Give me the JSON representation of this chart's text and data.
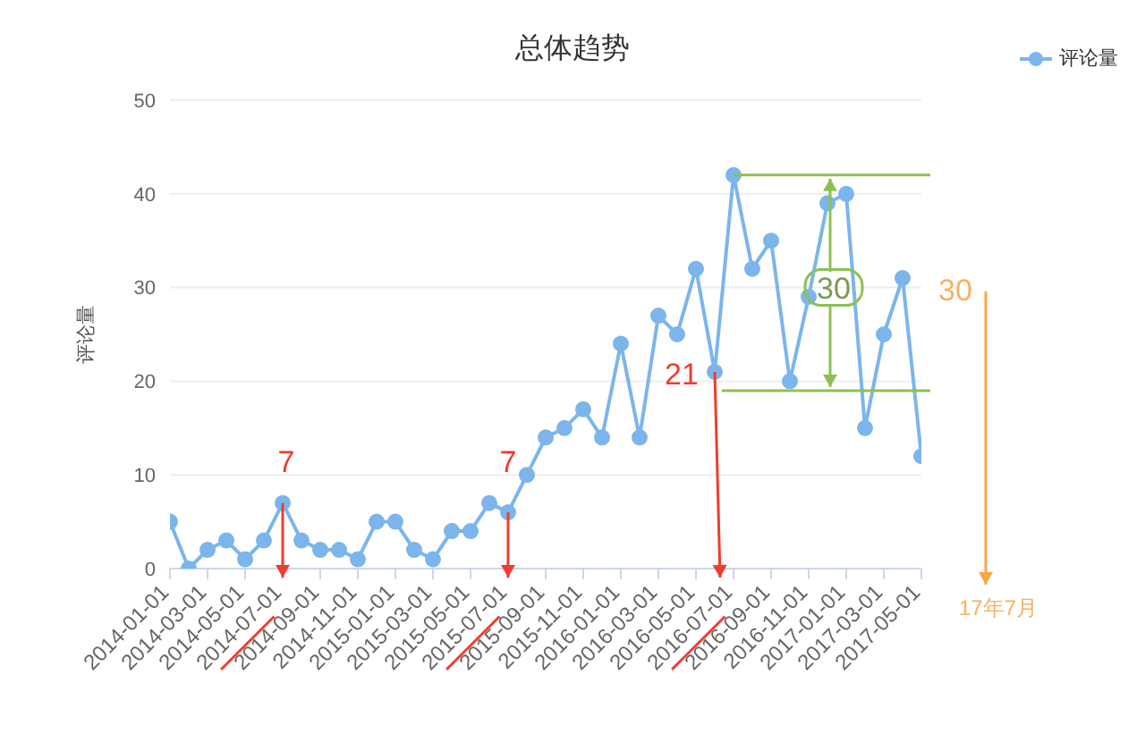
{
  "chart_data": {
    "type": "line",
    "title": "总体趋势",
    "ylabel": "评论量",
    "categories": [
      "2014-01-01",
      null,
      "2014-03-01",
      null,
      "2014-05-01",
      null,
      "2014-07-01",
      null,
      "2014-09-01",
      null,
      "2014-11-01",
      null,
      "2015-01-01",
      null,
      "2015-03-01",
      null,
      "2015-05-01",
      null,
      "2015-07-01",
      null,
      "2015-09-01",
      null,
      "2015-11-01",
      null,
      "2016-01-01",
      null,
      "2016-03-01",
      null,
      "2016-05-01",
      null,
      "2016-07-01",
      null,
      "2016-09-01",
      null,
      "2016-11-01",
      null,
      "2017-01-01",
      null,
      "2017-03-01",
      null,
      "2017-05-01"
    ],
    "series": [
      {
        "name": "评论量",
        "color": "#7cb5ec",
        "values": [
          5,
          0,
          2,
          3,
          1,
          3,
          7,
          3,
          2,
          2,
          1,
          5,
          5,
          2,
          1,
          4,
          4,
          7,
          6,
          10,
          14,
          15,
          17,
          14,
          24,
          14,
          27,
          25,
          32,
          21,
          42,
          32,
          35,
          20,
          29,
          39,
          40,
          15,
          25,
          31,
          12
        ]
      }
    ],
    "ylim": [
      0,
      50
    ],
    "yticks": [
      0,
      10,
      20,
      30,
      40,
      50
    ],
    "grid": "y",
    "legend": "top right",
    "marker": "circle",
    "line_style": "solid",
    "ref_lines": [
      {
        "axis": "y",
        "value": 42,
        "color": "#8cc152"
      },
      {
        "axis": "y",
        "value": 19,
        "color": "#8cc152"
      }
    ],
    "annotations": [
      "7",
      "7",
      "21",
      {
        "text": "30",
        "y": 30
      },
      "30",
      "17年7月"
    ]
  }
}
